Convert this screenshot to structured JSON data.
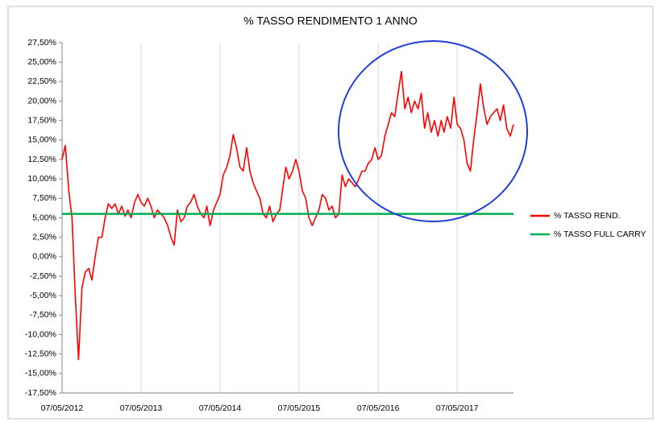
{
  "chart_data": {
    "type": "line",
    "title": "% TASSO RENDIMENTO   1 ANNO",
    "xlim": [
      "07/05/2012",
      "22/01/2018"
    ],
    "xticks": [
      "07/05/2012",
      "07/05/2013",
      "07/05/2014",
      "07/05/2015",
      "07/05/2016",
      "07/05/2017"
    ],
    "ylim": [
      -17.5,
      27.5
    ],
    "yticks": [
      {
        "value": -17.5,
        "label": "-17,50%"
      },
      {
        "value": -15,
        "label": "-15,00%"
      },
      {
        "value": -12.5,
        "label": "-12,50%"
      },
      {
        "value": -10,
        "label": "-10,00%"
      },
      {
        "value": -7.5,
        "label": "-7,50%"
      },
      {
        "value": -5,
        "label": "-5,00%"
      },
      {
        "value": -2.5,
        "label": "-2,50%"
      },
      {
        "value": 0,
        "label": "0,00%"
      },
      {
        "value": 2.5,
        "label": "2,50%"
      },
      {
        "value": 5,
        "label": "5,00%"
      },
      {
        "value": 7.5,
        "label": "7,50%"
      },
      {
        "value": 10,
        "label": "10,00%"
      },
      {
        "value": 12.5,
        "label": "12,50%"
      },
      {
        "value": 15,
        "label": "15,00%"
      },
      {
        "value": 17.5,
        "label": "17,50%"
      },
      {
        "value": 20,
        "label": "20,00%"
      },
      {
        "value": 22.5,
        "label": "22,50%"
      },
      {
        "value": 25,
        "label": "25,00%"
      },
      {
        "value": 27.5,
        "label": "27,50%"
      }
    ],
    "grid": "x",
    "legend": "right",
    "series": [
      {
        "name": "% TASSO REND.",
        "color": "#ff0000",
        "x": [
          "07/05/2012",
          "22/05/2012",
          "07/06/2012",
          "22/06/2012",
          "07/07/2012",
          "22/07/2012",
          "07/08/2012",
          "22/08/2012",
          "07/09/2012",
          "22/09/2012",
          "07/10/2012",
          "22/10/2012",
          "07/11/2012",
          "22/11/2012",
          "07/12/2012",
          "22/12/2012",
          "07/01/2013",
          "22/01/2013",
          "07/02/2013",
          "22/02/2013",
          "07/03/2013",
          "22/03/2013",
          "07/04/2013",
          "22/04/2013",
          "07/05/2013",
          "22/05/2013",
          "07/06/2013",
          "22/06/2013",
          "07/07/2013",
          "22/07/2013",
          "07/08/2013",
          "22/08/2013",
          "07/09/2013",
          "22/09/2013",
          "07/10/2013",
          "22/10/2013",
          "07/11/2013",
          "22/11/2013",
          "07/12/2013",
          "22/12/2013",
          "07/01/2014",
          "22/01/2014",
          "07/02/2014",
          "22/02/2014",
          "07/03/2014",
          "22/03/2014",
          "07/04/2014",
          "22/04/2014",
          "07/05/2014",
          "22/05/2014",
          "07/06/2014",
          "22/06/2014",
          "07/07/2014",
          "22/07/2014",
          "07/08/2014",
          "22/08/2014",
          "07/09/2014",
          "22/09/2014",
          "07/10/2014",
          "22/10/2014",
          "07/11/2014",
          "22/11/2014",
          "07/12/2014",
          "22/12/2014",
          "07/01/2015",
          "22/01/2015",
          "07/02/2015",
          "22/02/2015",
          "07/03/2015",
          "22/03/2015",
          "07/04/2015",
          "22/04/2015",
          "07/05/2015",
          "22/05/2015",
          "07/06/2015",
          "22/06/2015",
          "07/07/2015",
          "22/07/2015",
          "07/08/2015",
          "22/08/2015",
          "07/09/2015",
          "22/09/2015",
          "07/10/2015",
          "22/10/2015",
          "07/11/2015",
          "22/11/2015",
          "07/12/2015",
          "22/12/2015",
          "07/01/2016",
          "22/01/2016",
          "07/02/2016",
          "22/02/2016",
          "07/03/2016",
          "22/03/2016",
          "07/04/2016",
          "22/04/2016",
          "07/05/2016",
          "22/05/2016",
          "07/06/2016",
          "22/06/2016",
          "07/07/2016",
          "22/07/2016",
          "07/08/2016",
          "22/08/2016",
          "07/09/2016",
          "22/09/2016",
          "07/10/2016",
          "22/10/2016",
          "07/11/2016",
          "22/11/2016",
          "07/12/2016",
          "22/12/2016",
          "07/01/2017",
          "22/01/2017",
          "07/02/2017",
          "22/02/2017",
          "07/03/2017",
          "22/03/2017",
          "07/04/2017",
          "22/04/2017",
          "07/05/2017",
          "22/05/2017",
          "07/06/2017",
          "22/06/2017",
          "07/07/2017",
          "22/07/2017",
          "07/08/2017",
          "22/08/2017",
          "07/09/2017",
          "22/09/2017",
          "07/10/2017",
          "22/10/2017",
          "07/11/2017",
          "22/11/2017",
          "07/12/2017",
          "22/12/2017",
          "07/01/2018",
          "22/01/2018"
        ],
        "values": [
          12.5,
          14.3,
          8.5,
          5,
          -5,
          -13.2,
          -4,
          -2,
          -1.5,
          -3,
          0,
          2.5,
          2.5,
          5,
          6.8,
          6.2,
          6.8,
          5.5,
          6.5,
          5.2,
          6,
          5,
          7,
          8,
          7,
          6.5,
          7.5,
          6.5,
          5,
          6,
          5.5,
          5,
          4,
          2.5,
          1.5,
          6,
          4.5,
          5,
          6.5,
          7,
          8,
          6.5,
          5.5,
          5,
          6.5,
          4,
          6,
          7,
          8,
          10.5,
          11.5,
          13,
          15.7,
          14,
          11.5,
          11,
          14,
          11,
          9.5,
          8.5,
          7.5,
          5.5,
          5,
          6.5,
          4.5,
          5.5,
          6,
          9,
          11.5,
          10,
          11,
          12.5,
          11,
          8.5,
          7.5,
          5,
          4,
          5,
          6,
          8,
          7.5,
          6,
          6.5,
          5,
          5.5,
          10.5,
          9,
          10,
          9.5,
          9,
          10,
          11,
          11,
          12,
          12.5,
          14,
          12.5,
          13,
          15.5,
          17,
          18.5,
          18,
          21,
          23.8,
          19,
          20.5,
          18.5,
          20,
          19,
          21,
          16.5,
          18.5,
          16,
          17.5,
          15.5,
          17.5,
          16,
          18,
          16.5,
          20.5,
          17,
          16.5,
          15,
          12,
          11,
          15,
          18.5,
          22.2,
          19,
          17,
          18,
          18.5,
          19,
          17.5,
          19.5,
          16.5,
          15.5,
          17
        ]
      },
      {
        "name": "% TASSO FULL CARRY",
        "color": "#00b050",
        "x": [
          "07/05/2012",
          "22/01/2018"
        ],
        "values": [
          5.5,
          5.5
        ]
      }
    ]
  }
}
